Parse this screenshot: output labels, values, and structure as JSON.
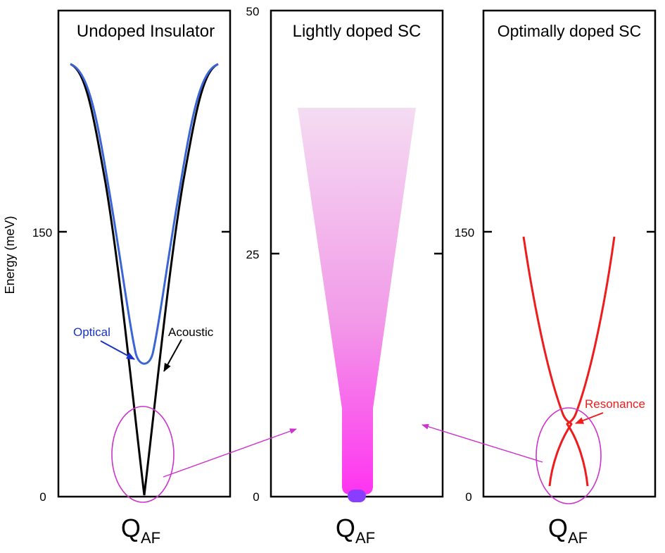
{
  "figure": {
    "y_axis_label": "Energy (meV)",
    "colors": {
      "acoustic": "#000000",
      "optical": "#3b64d6",
      "resonance": "#ee1c1c",
      "gradient_top": "#f4dcf2",
      "gradient_bottom": "#ff33f0",
      "spot": "#8a3dff",
      "annotation": "#cc33cc"
    },
    "panels": [
      {
        "title": "Undoped Insulator",
        "x_label_main": "Q",
        "x_label_sub": "AF",
        "y_ticks": [
          "150",
          "0"
        ],
        "annotations": {
          "optical": "Optical",
          "acoustic": "Acoustic"
        }
      },
      {
        "title": "Lightly doped SC",
        "x_label_main": "Q",
        "x_label_sub": "AF",
        "y_ticks": [
          "50",
          "25",
          "0"
        ]
      },
      {
        "title": "Optimally doped SC",
        "x_label_main": "Q",
        "x_label_sub": "AF",
        "y_ticks": [
          "150",
          "0"
        ],
        "annotations": {
          "resonance": "Resonance"
        }
      }
    ]
  }
}
